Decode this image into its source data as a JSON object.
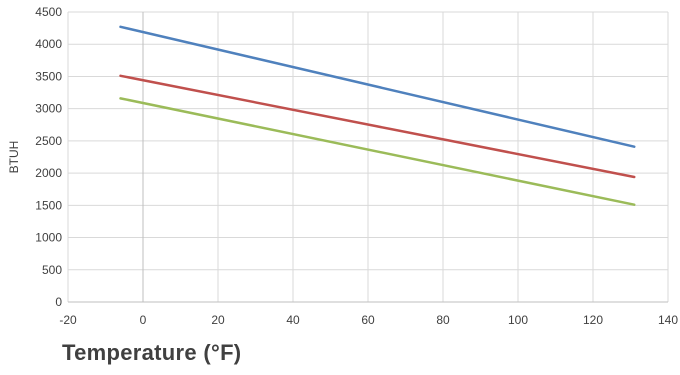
{
  "chart_data": {
    "type": "line",
    "title": "",
    "xlabel": "Temperature (°F)",
    "ylabel": "BTUH",
    "xlim": [
      -20,
      140
    ],
    "ylim": [
      0,
      4500
    ],
    "xticks": [
      -20,
      0,
      20,
      40,
      60,
      80,
      100,
      120,
      140
    ],
    "yticks": [
      0,
      500,
      1000,
      1500,
      2000,
      2500,
      3000,
      3500,
      4000,
      4500
    ],
    "grid": true,
    "legend": "none",
    "series": [
      {
        "color": "#4f81bd",
        "x": [
          -6,
          131
        ],
        "y": [
          4270,
          2410
        ]
      },
      {
        "color": "#c0504d",
        "x": [
          -6,
          131
        ],
        "y": [
          3510,
          1940
        ]
      },
      {
        "color": "#9bbb59",
        "x": [
          -6,
          131
        ],
        "y": [
          3160,
          1510
        ]
      }
    ]
  }
}
